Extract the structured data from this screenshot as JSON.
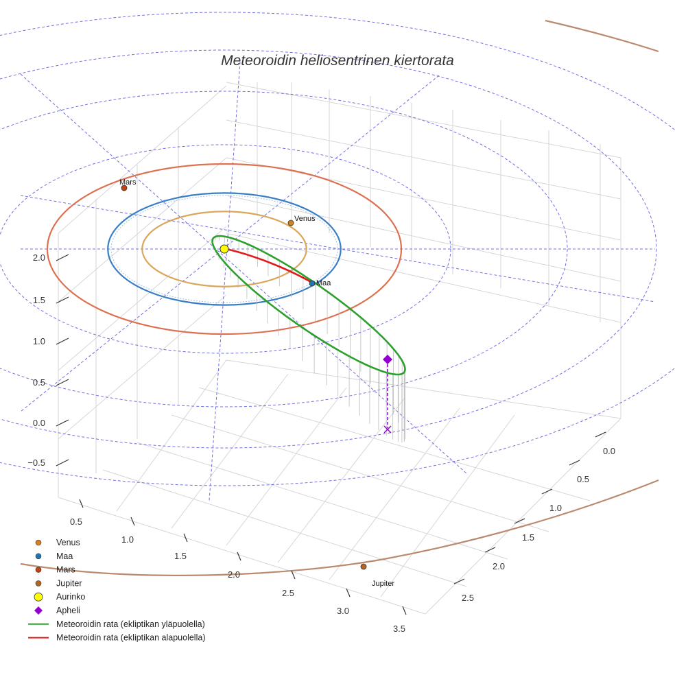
{
  "chart_data": {
    "type": "scatter3d",
    "title": "Meteoroidin heliosentrinen kiertorata",
    "axes": {
      "x_ticks": [
        "0.5",
        "1.0",
        "1.5",
        "2.0",
        "2.5",
        "3.0",
        "3.5"
      ],
      "y_ticks": [
        "0.0",
        "0.5",
        "1.0",
        "1.5",
        "2.0",
        "2.5"
      ],
      "z_ticks": [
        "−0.5",
        "0.0",
        "0.5",
        "1.0",
        "1.5",
        "2.0"
      ],
      "grid": true
    },
    "planets": [
      {
        "name": "Venus",
        "label": "Venus",
        "color": "#d4821f",
        "orbit_color": "#d9a65a",
        "orbit_radius_au": 0.72
      },
      {
        "name": "Maa",
        "label": "Maa",
        "color": "#1f77b4",
        "orbit_color": "#3a7fc4",
        "orbit_radius_au": 1.0
      },
      {
        "name": "Mars",
        "label": "Mars",
        "color": "#c1440e",
        "orbit_color": "#dd7050",
        "orbit_radius_au": 1.52
      },
      {
        "name": "Jupiter",
        "label": "Jupiter",
        "color": "#b5651d",
        "orbit_color": "#b98a6e",
        "orbit_radius_au": 5.2
      }
    ],
    "sun": {
      "name": "Aurinko",
      "color": "#ffff00"
    },
    "aphelion": {
      "name": "Apheli",
      "color": "#9400d3"
    },
    "meteoroid_orbit": [
      {
        "name": "Meteoroidin rata (ekliptikan yläpuolella)",
        "color": "#2ca02c"
      },
      {
        "name": "Meteoroidin rata (ekliptikan alapuolella)",
        "color": "#e31a1c"
      }
    ],
    "legend_position": "bottom-left",
    "legend": [
      {
        "label": "Venus",
        "symbol": "dot",
        "color": "#d4821f"
      },
      {
        "label": "Maa",
        "symbol": "dot",
        "color": "#1f77b4"
      },
      {
        "label": "Mars",
        "symbol": "dot",
        "color": "#c1440e"
      },
      {
        "label": "Jupiter",
        "symbol": "dot",
        "color": "#b5651d"
      },
      {
        "label": "Aurinko",
        "symbol": "sun",
        "color": "#ffff00"
      },
      {
        "label": "Apheli",
        "symbol": "diamond",
        "color": "#9400d3"
      },
      {
        "label": "Meteoroidin rata (ekliptikan yläpuolella)",
        "symbol": "line",
        "color": "#2ca02c"
      },
      {
        "label": "Meteoroidin rata (ekliptikan alapuolella)",
        "symbol": "line",
        "color": "#e31a1c"
      }
    ]
  }
}
